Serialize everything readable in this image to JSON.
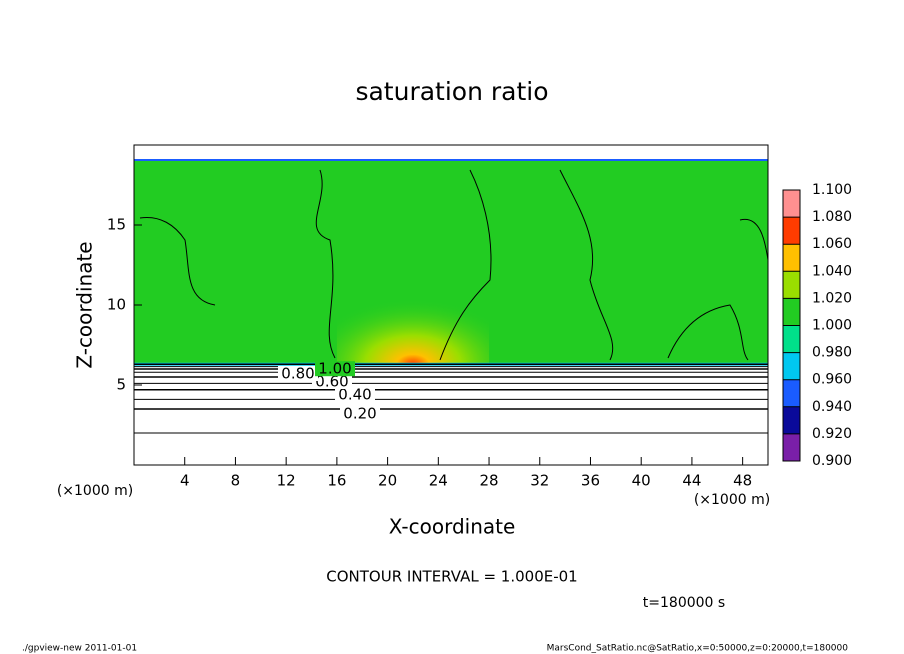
{
  "chart_data": {
    "type": "contour",
    "title": "saturation ratio",
    "xlabel": "X-coordinate",
    "ylabel": "Z-coordinate",
    "x_unit": "(×1000 m)",
    "xlim": [
      0,
      50
    ],
    "ylim": [
      0,
      20
    ],
    "xticks": [
      4,
      8,
      12,
      16,
      20,
      24,
      28,
      32,
      36,
      40,
      44,
      48
    ],
    "yticks": [
      5,
      10,
      15
    ],
    "contours": {
      "levels": [
        0.1,
        0.2,
        0.3,
        0.4,
        0.5,
        0.6,
        0.7,
        0.8,
        0.9,
        1.0
      ],
      "z": [
        2.0,
        3.5,
        4.1,
        4.7,
        5.1,
        5.5,
        5.8,
        6.0,
        6.15,
        6.3
      ]
    },
    "contour_labels": [
      {
        "value": 0.2,
        "label": "0.20"
      },
      {
        "value": 0.4,
        "label": "0.40"
      },
      {
        "value": 0.6,
        "label": "0.60"
      },
      {
        "value": 0.8,
        "label": "0.80"
      },
      {
        "value": 1.0,
        "label": "1.00"
      }
    ],
    "colorbar": {
      "levels": [
        {
          "value": 0.9,
          "label": "0.900"
        },
        {
          "value": 0.92,
          "label": "0.920"
        },
        {
          "value": 0.94,
          "label": "0.940"
        },
        {
          "value": 0.96,
          "label": "0.960"
        },
        {
          "value": 0.98,
          "label": "0.980"
        },
        {
          "value": 1.0,
          "label": "1.000"
        },
        {
          "value": 1.02,
          "label": "1.020"
        },
        {
          "value": 1.04,
          "label": "1.040"
        },
        {
          "value": 1.06,
          "label": "1.060"
        },
        {
          "value": 1.08,
          "label": "1.080"
        },
        {
          "value": 1.1,
          "label": "1.100"
        }
      ],
      "colors": [
        "#7a1fa8",
        "#0a0a9a",
        "#1a5cff",
        "#00c8f0",
        "#00e08a",
        "#22cc22",
        "#9ade00",
        "#ffc000",
        "#ff3c00",
        "#ff9090"
      ]
    },
    "contour_interval": "CONTOUR INTERVAL = 1.000E-01",
    "time_label": "t=180000 s",
    "footer_left": "./gpview-new  2011-01-01",
    "footer_right": "MarsCond_SatRatio.nc@SatRatio,x=0:50000,z=0:20000,t=180000"
  }
}
